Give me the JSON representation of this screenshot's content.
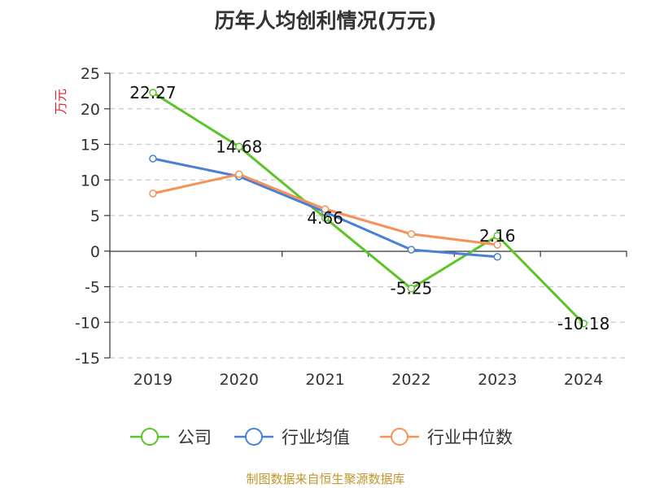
{
  "title": "历年人均创利情况(万元)",
  "source": "制图数据来自恒生聚源数据库",
  "chart_data": {
    "type": "line",
    "title": "历年人均创利情况(万元)",
    "ylabel": "万元",
    "xlabel": "",
    "x": [
      "2019",
      "2020",
      "2021",
      "2022",
      "2023",
      "2024"
    ],
    "ylim": [
      -15,
      25
    ],
    "yticks": [
      25,
      20,
      15,
      10,
      5,
      0,
      -5,
      -10,
      -15
    ],
    "grid": true,
    "legend_position": "bottom",
    "series": [
      {
        "name": "公司",
        "color": "#5cc328",
        "values": [
          22.27,
          14.68,
          4.66,
          -5.25,
          2.16,
          -10.18
        ],
        "labels": [
          "22.27",
          "14.68",
          "4.66",
          "-5.25",
          "2.16",
          "-10.18"
        ]
      },
      {
        "name": "行业均值",
        "color": "#4a7fd6",
        "values": [
          13.0,
          10.5,
          5.5,
          0.2,
          -0.8,
          null
        ]
      },
      {
        "name": "行业中位数",
        "color": "#f4925a",
        "values": [
          8.1,
          10.8,
          5.9,
          2.4,
          0.9,
          null
        ]
      }
    ]
  }
}
